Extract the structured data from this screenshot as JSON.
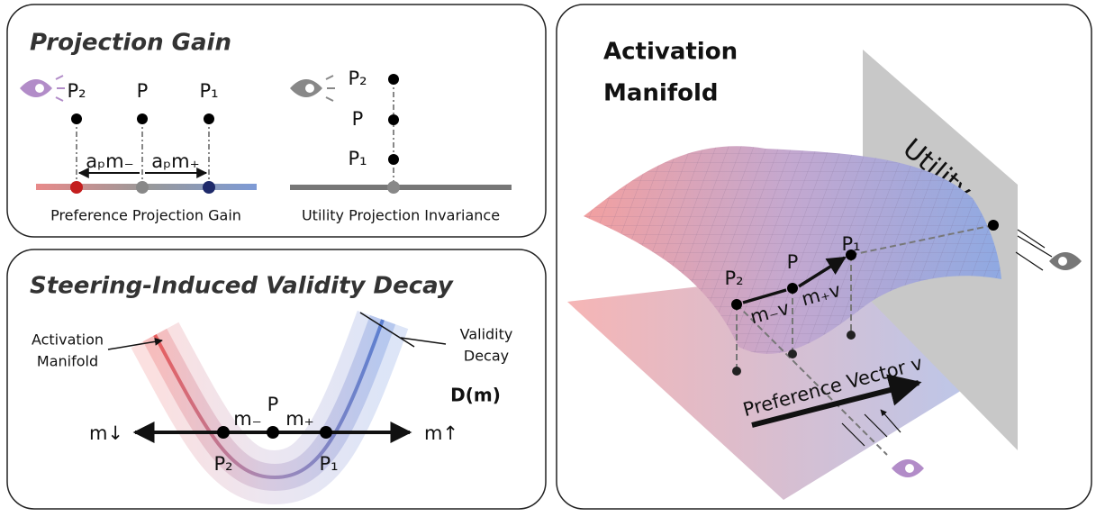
{
  "projection_gain": {
    "title": "Projection Gain",
    "preference": {
      "points": [
        "P₂",
        "P",
        "P₁"
      ],
      "spans": [
        "aₚm₋",
        "aₚm₊"
      ],
      "caption": "Preference Projection Gain"
    },
    "utility": {
      "points": [
        "P₂",
        "P",
        "P₁"
      ],
      "caption": "Utility Projection Invariance"
    }
  },
  "validity_decay": {
    "title": "Steering-Induced Validity Decay",
    "manifold_label": [
      "Activation",
      "Manifold"
    ],
    "decay_label": [
      "Validity",
      "Decay"
    ],
    "decay_symbol": "D(m)",
    "axis": [
      "m↓",
      "m↑"
    ],
    "steps": [
      "m₋",
      "m₊"
    ],
    "points": [
      "P₂",
      "P",
      "P₁"
    ]
  },
  "activation_manifold": {
    "title": [
      "Activation",
      "Manifold"
    ],
    "plane_label": "Utility",
    "points": [
      "P₂",
      "P",
      "P₁"
    ],
    "steps": [
      "m₋v",
      "m₊v"
    ],
    "vector_label": "Preference Vector v"
  }
}
